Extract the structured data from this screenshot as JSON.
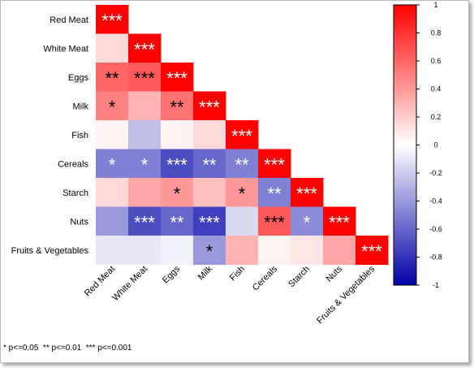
{
  "chart_data": {
    "type": "heatmap",
    "variables": [
      "Red Meat",
      "White Meat",
      "Eggs",
      "Milk",
      "Fish",
      "Cereals",
      "Starch",
      "Nuts",
      "Fruits & Vegetables"
    ],
    "matrix": [
      [
        1.0
      ],
      [
        0.15,
        1.0
      ],
      [
        0.6,
        0.65,
        1.0
      ],
      [
        0.5,
        0.3,
        0.55,
        1.0
      ],
      [
        0.05,
        -0.25,
        0.05,
        0.15,
        1.0
      ],
      [
        -0.5,
        -0.5,
        -0.7,
        -0.6,
        -0.5,
        1.0
      ],
      [
        0.15,
        0.35,
        0.4,
        0.25,
        0.4,
        -0.5,
        1.0
      ],
      [
        -0.4,
        -0.7,
        -0.6,
        -0.75,
        -0.15,
        0.65,
        -0.45,
        1.0
      ],
      [
        -0.1,
        -0.1,
        -0.05,
        -0.4,
        0.3,
        0.05,
        0.1,
        0.35,
        1.0
      ]
    ],
    "significance": [
      [
        "***"
      ],
      [
        "",
        "***"
      ],
      [
        "**",
        "***",
        "***"
      ],
      [
        "*",
        "",
        "**",
        "***"
      ],
      [
        "",
        "",
        "",
        "",
        "***"
      ],
      [
        "*",
        "*",
        "***",
        "**",
        "**",
        "***"
      ],
      [
        "",
        "",
        "*",
        "",
        "*",
        "**",
        "***"
      ],
      [
        "",
        "***",
        "**",
        "***",
        "",
        "***",
        "*",
        "***"
      ],
      [
        "",
        "",
        "",
        "*",
        "",
        "",
        "",
        "",
        "***"
      ]
    ],
    "colorbar": {
      "range": [
        -1,
        1
      ],
      "ticks": [
        "1",
        "0.8",
        "0.6",
        "0.4",
        "0.2",
        "0",
        "-0.2",
        "-0.4",
        "-0.6",
        "-0.8",
        "-1"
      ],
      "colors": {
        "low": "#0000a8",
        "mid": "#ffffff",
        "high": "#ff0000"
      }
    },
    "footnote": "* p<=0.05  ** p<=0.01  *** p<=0.001"
  }
}
